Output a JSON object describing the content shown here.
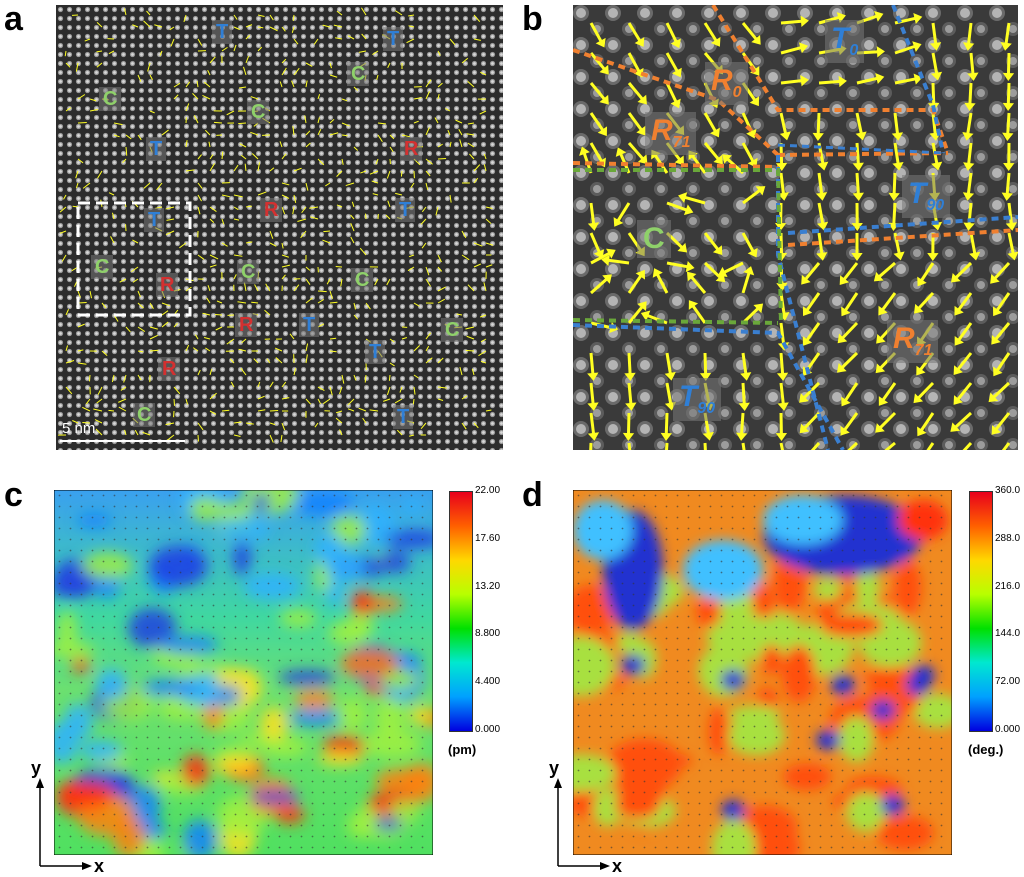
{
  "panels": {
    "a": {
      "letter": "a",
      "scale_text": "5 nm",
      "labels": [
        {
          "text": "T",
          "type": "t"
        },
        {
          "text": "T",
          "type": "t"
        },
        {
          "text": "C",
          "type": "c"
        },
        {
          "text": "C",
          "type": "c"
        },
        {
          "text": "C",
          "type": "c"
        },
        {
          "text": "T",
          "type": "t"
        },
        {
          "text": "R",
          "type": "r"
        },
        {
          "text": "T",
          "type": "t"
        },
        {
          "text": "R",
          "type": "r"
        },
        {
          "text": "T",
          "type": "t"
        },
        {
          "text": "C",
          "type": "c"
        },
        {
          "text": "R",
          "type": "r"
        },
        {
          "text": "C",
          "type": "c"
        },
        {
          "text": "C",
          "type": "c"
        },
        {
          "text": "R",
          "type": "r"
        },
        {
          "text": "T",
          "type": "t"
        },
        {
          "text": "C",
          "type": "c"
        },
        {
          "text": "T",
          "type": "t"
        },
        {
          "text": "R",
          "type": "r"
        },
        {
          "text": "C",
          "type": "c"
        },
        {
          "text": "T",
          "type": "t"
        }
      ]
    },
    "b": {
      "letter": "b",
      "labels": [
        {
          "main": "T",
          "sub": "0",
          "type": "t"
        },
        {
          "main": "R",
          "sub": "0",
          "type": "ro"
        },
        {
          "main": "R",
          "sub": "71",
          "type": "ro"
        },
        {
          "main": "T",
          "sub": "90",
          "type": "t"
        },
        {
          "main": "C",
          "sub": "",
          "type": "c"
        },
        {
          "main": "R",
          "sub": "71",
          "type": "ro"
        },
        {
          "main": "T",
          "sub": "90",
          "type": "t"
        }
      ]
    },
    "c": {
      "letter": "c",
      "colorbar": {
        "ticks": [
          "22.00",
          "17.60",
          "13.20",
          "8.800",
          "4.400",
          "0.000"
        ],
        "unit": "(pm)"
      },
      "axes": {
        "x": "x",
        "y": "y"
      }
    },
    "d": {
      "letter": "d",
      "colorbar": {
        "ticks": [
          "360.0",
          "288.0",
          "216.0",
          "144.0",
          "72.00",
          "0.000"
        ],
        "unit": "(deg.)"
      },
      "axes": {
        "x": "x",
        "y": "y"
      }
    }
  },
  "colors": {
    "arrow": "#ffff22",
    "c_label": "#8fd16a",
    "t_label": "#2f7fd6",
    "r_label": "#d43030",
    "r_orange_label": "#f08030",
    "dash_orange": "#f08030",
    "dash_blue": "#3a7fd0",
    "dash_green": "#6aa83a",
    "box_white": "#ffffff"
  }
}
